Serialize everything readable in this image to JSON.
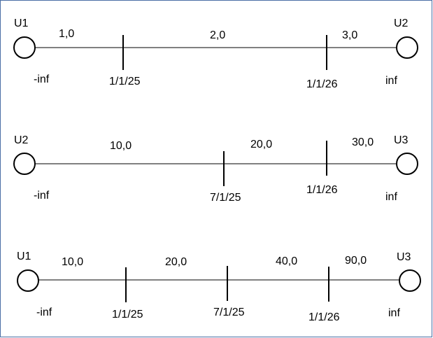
{
  "colors": {
    "frame": "#4a6fa5",
    "line": "#000000",
    "background": "#ffffff"
  },
  "diagrams": [
    {
      "left_node": "U1",
      "right_node": "U2",
      "left_end": "-inf",
      "right_end": "inf",
      "ticks": [
        "1/1/25",
        "1/1/26"
      ],
      "segments": [
        "1,0",
        "2,0",
        "3,0"
      ]
    },
    {
      "left_node": "U2",
      "right_node": "U3",
      "left_end": "-inf",
      "right_end": "inf",
      "ticks": [
        "7/1/25",
        "1/1/26"
      ],
      "segments": [
        "10,0",
        "20,0",
        "30,0"
      ]
    },
    {
      "left_node": "U1",
      "right_node": "U3",
      "left_end": "-inf",
      "right_end": "inf",
      "ticks": [
        "1/1/25",
        "7/1/25",
        "1/1/26"
      ],
      "segments": [
        "10,0",
        "20,0",
        "40,0",
        "90,0"
      ]
    }
  ]
}
